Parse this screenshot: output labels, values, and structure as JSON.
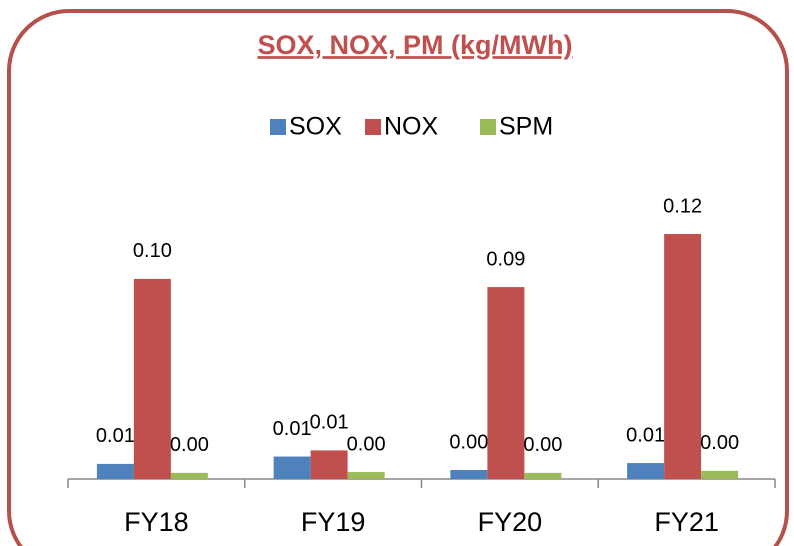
{
  "chart_data": {
    "type": "bar",
    "title": "SOX, NOX, PM (kg/MWh)",
    "categories": [
      "FY18",
      "FY19",
      "FY20",
      "FY21"
    ],
    "series": [
      {
        "name": "SOX",
        "color": "#4f81bd",
        "values": [
          0.0074,
          0.011,
          0.0044,
          0.0078
        ],
        "value_labels": [
          "0.01",
          "0.01",
          "0.00",
          "0.01"
        ]
      },
      {
        "name": "NOX",
        "color": "#c0504d",
        "values": [
          0.098,
          0.014,
          0.094,
          0.12
        ],
        "value_labels": [
          "0.10",
          "0.01",
          "0.09",
          "0.12"
        ]
      },
      {
        "name": "SPM",
        "color": "#9bbb59",
        "values": [
          0.003,
          0.0034,
          0.003,
          0.004
        ],
        "value_labels": [
          "0.00",
          "0.00",
          "0.00",
          "0.00"
        ]
      }
    ],
    "legend": "top"
  }
}
